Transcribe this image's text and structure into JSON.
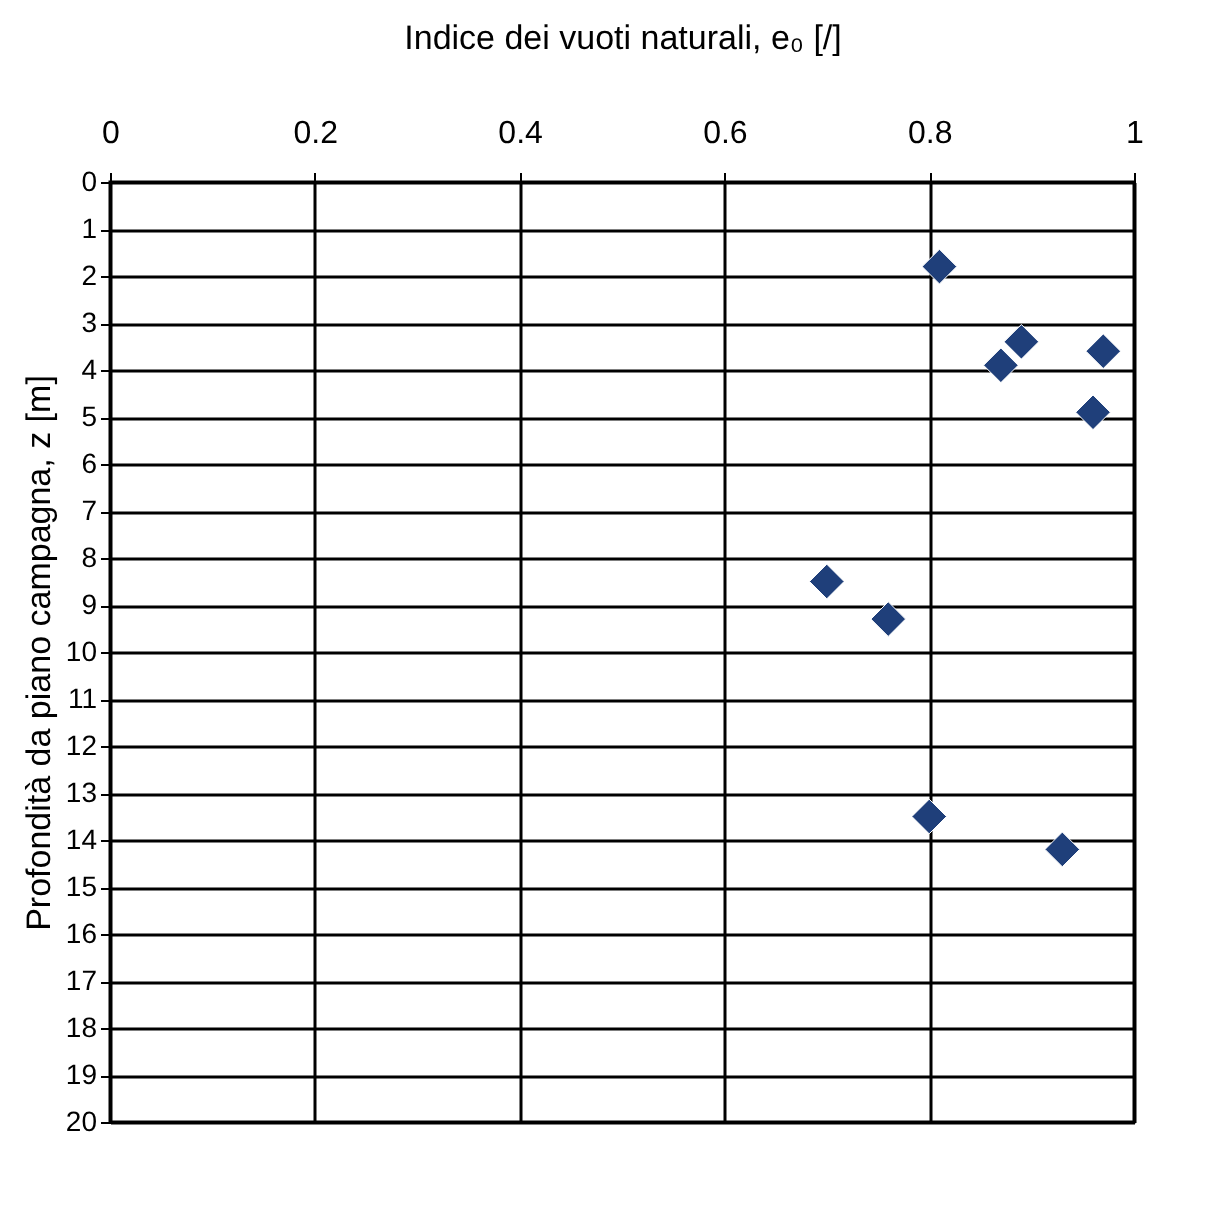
{
  "chart_data": {
    "type": "scatter",
    "xlabel": "Indice dei vuoti naturali, e₀ [/]",
    "ylabel": "Profondità da piano campagna, z [m]",
    "x": [
      0.81,
      0.89,
      0.87,
      0.97,
      0.96,
      0.7,
      0.76,
      0.8,
      0.93
    ],
    "series": [
      {
        "color": "#1f3f7a",
        "values": [
          1.8,
          3.4,
          3.9,
          3.6,
          4.9,
          8.5,
          9.3,
          13.5,
          14.2
        ]
      }
    ],
    "xlim": [
      0,
      1
    ],
    "xticks": [
      0,
      0.2,
      0.4,
      0.6,
      0.8,
      1
    ],
    "ylim": [
      20,
      0
    ],
    "yticks": [
      0,
      1,
      2,
      3,
      4,
      5,
      6,
      7,
      8,
      9,
      10,
      11,
      12,
      13,
      14,
      15,
      16,
      17,
      18,
      19,
      20
    ],
    "grid": true,
    "marker": "diamond"
  }
}
